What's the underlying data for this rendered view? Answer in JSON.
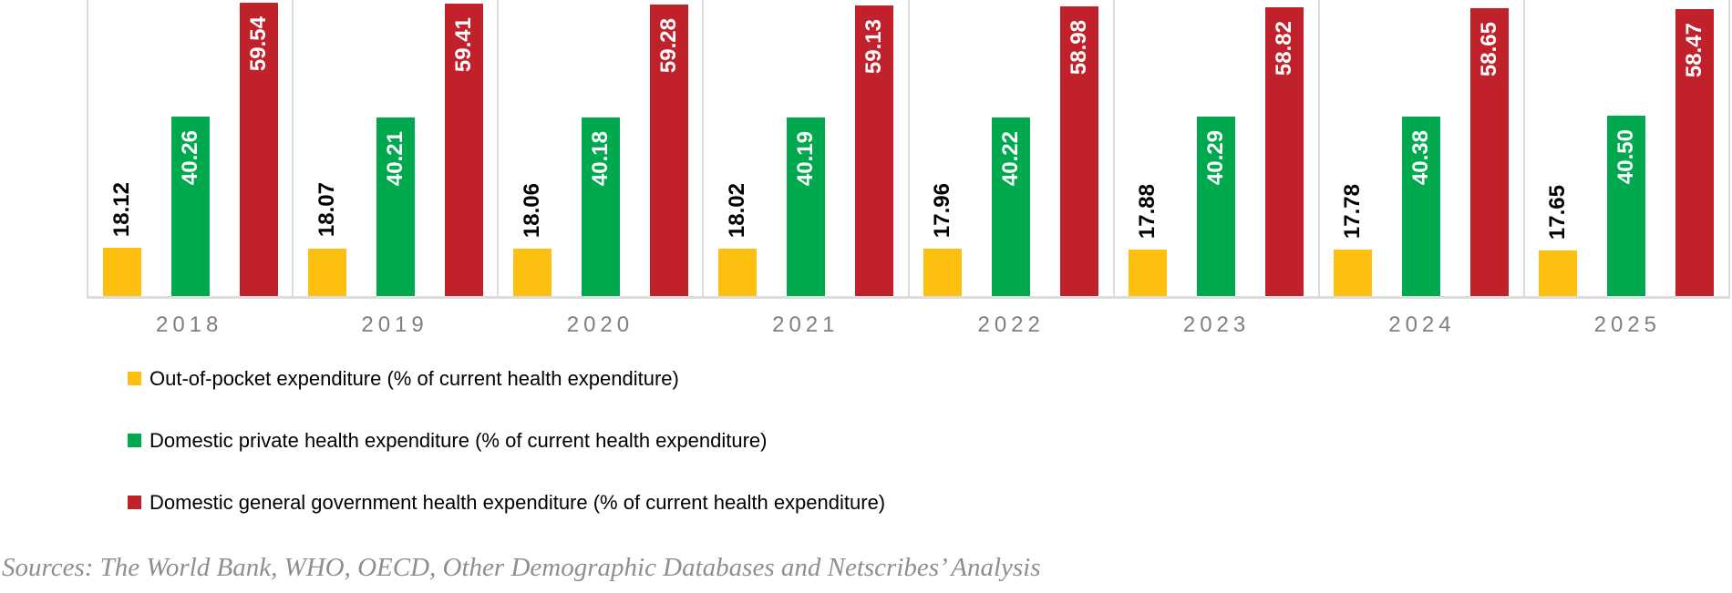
{
  "chart_data": {
    "type": "bar",
    "title": "",
    "xlabel": "",
    "ylabel": "",
    "ylim": [
      10,
      60
    ],
    "grid": false,
    "panel_borders": true,
    "legend_position": "bottom-left",
    "value_labels": "rotated-vertical",
    "categories": [
      "2018",
      "2019",
      "2020",
      "2021",
      "2022",
      "2023",
      "2024",
      "2025"
    ],
    "series": [
      {
        "name": "Out-of-pocket expenditure (% of current health expenditure)",
        "color": "#FEC010",
        "label_color": "#000000",
        "label_position": "above",
        "values": [
          18.12,
          18.07,
          18.06,
          18.02,
          17.96,
          17.88,
          17.78,
          17.65
        ]
      },
      {
        "name": "Domestic private health expenditure (% of current health expenditure)",
        "color": "#00A94E",
        "label_color": "#FFFFFF",
        "label_position": "inside",
        "values": [
          40.26,
          40.21,
          40.18,
          40.19,
          40.22,
          40.29,
          40.38,
          40.5
        ]
      },
      {
        "name": "Domestic general government health expenditure (% of current health expenditure)",
        "color": "#C1212A",
        "label_color": "#FFFFFF",
        "label_position": "inside",
        "values": [
          59.54,
          59.41,
          59.28,
          59.13,
          58.98,
          58.82,
          58.65,
          58.47
        ]
      }
    ]
  },
  "footer": {
    "sources": "Sources: The World Bank, WHO, OECD, Other Demographic Databases and Netscribes’ Analysis"
  },
  "style": {
    "axis_line_color": "#DCDCDC",
    "panel_border_color": "#DCDCDC",
    "year_label_color": "#7F7F7F",
    "legend_text_color": "#000000",
    "sources_text_color": "#8E8E8E"
  }
}
